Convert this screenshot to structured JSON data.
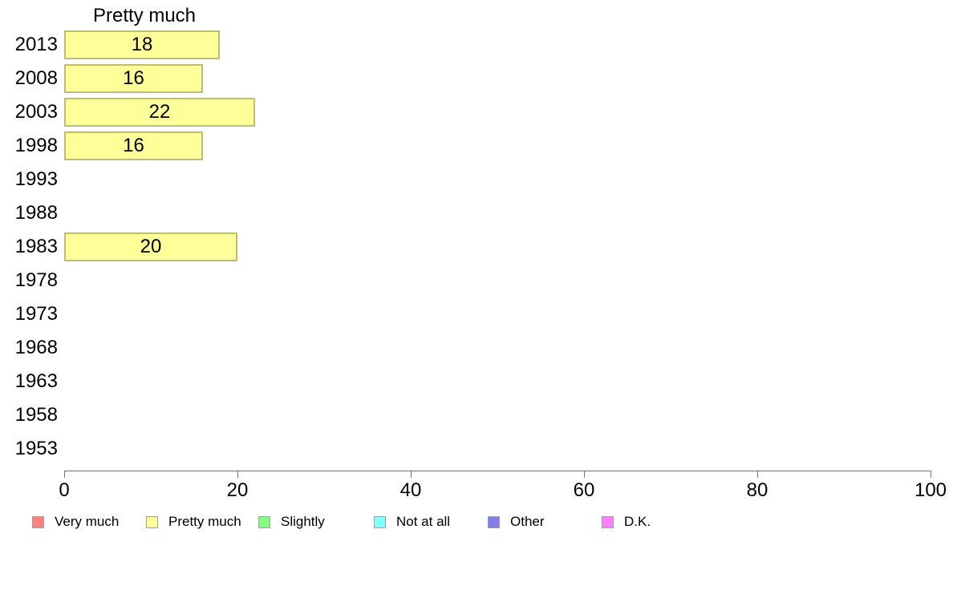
{
  "chart_data": {
    "type": "bar",
    "orientation": "horizontal",
    "title": "Pretty much",
    "categories": [
      "2013",
      "2008",
      "2003",
      "1998",
      "1993",
      "1988",
      "1983",
      "1978",
      "1973",
      "1968",
      "1963",
      "1958",
      "1953"
    ],
    "values": [
      18,
      16,
      22,
      16,
      null,
      null,
      20,
      null,
      null,
      null,
      null,
      null,
      null
    ],
    "xlabel": "",
    "ylabel": "",
    "xlim": [
      0,
      100
    ],
    "x_ticks": [
      0,
      20,
      40,
      60,
      80,
      100
    ],
    "grid": false,
    "bar_fill_color": "#FFFF99",
    "bar_border_color": "#BDBD76",
    "axis_color": "#707070",
    "legend_position": "bottom",
    "legend": [
      {
        "label": "Very much",
        "color": "#FF8080"
      },
      {
        "label": "Pretty much",
        "color": "#FFFF99"
      },
      {
        "label": "Slightly",
        "color": "#80FF80"
      },
      {
        "label": "Not at all",
        "color": "#80FFFF"
      },
      {
        "label": "Other",
        "color": "#8080E8"
      },
      {
        "label": "D.K.",
        "color": "#FF80FF"
      }
    ]
  }
}
